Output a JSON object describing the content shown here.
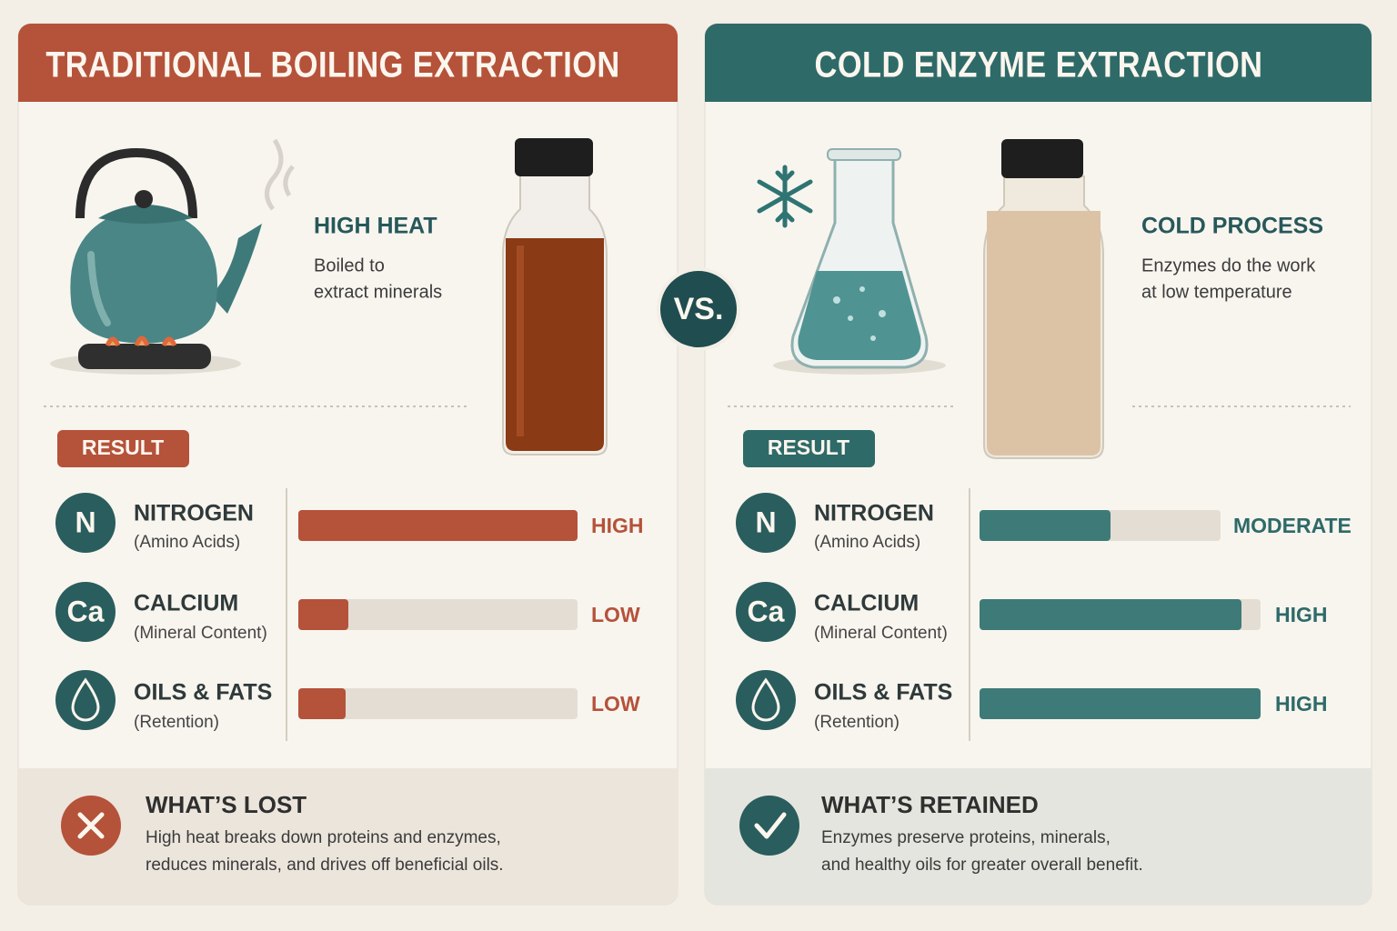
{
  "left": {
    "title": "TRADITIONAL BOILING EXTRACTION",
    "method": {
      "title": "HIGH HEAT",
      "text": [
        "Boiled to",
        "extract minerals"
      ]
    },
    "result": "RESULT",
    "rows": [
      {
        "symbol": "N",
        "name": "NITROGEN",
        "sub": "(Amino Acids)",
        "level": "HIGH"
      },
      {
        "symbol": "Ca",
        "name": "CALCIUM",
        "sub": "(Mineral Content)",
        "level": "LOW"
      },
      {
        "name": "OILS & FATS",
        "sub": "(Retention)",
        "level": "LOW"
      }
    ],
    "summary": {
      "title": "WHAT’S LOST",
      "text": [
        "High heat breaks down proteins and enzymes,",
        "reduces minerals, and drives off beneficial oils."
      ]
    }
  },
  "vs": "VS.",
  "right": {
    "title": "COLD ENZYME EXTRACTION",
    "method": {
      "title": "COLD PROCESS",
      "text": [
        "Enzymes do the work",
        "at low temperature"
      ]
    },
    "result": "RESULT",
    "rows": [
      {
        "symbol": "N",
        "name": "NITROGEN",
        "sub": "(Amino Acids)",
        "level": "MODERATE"
      },
      {
        "symbol": "Ca",
        "name": "CALCIUM",
        "sub": "(Mineral Content)",
        "level": "HIGH"
      },
      {
        "name": "OILS & FATS",
        "sub": "(Retention)",
        "level": "HIGH"
      }
    ],
    "summary": {
      "title": "WHAT’S RETAINED",
      "text": [
        "Enzymes preserve proteins, minerals,",
        "and healthy oils for greater overall benefit."
      ]
    }
  }
}
